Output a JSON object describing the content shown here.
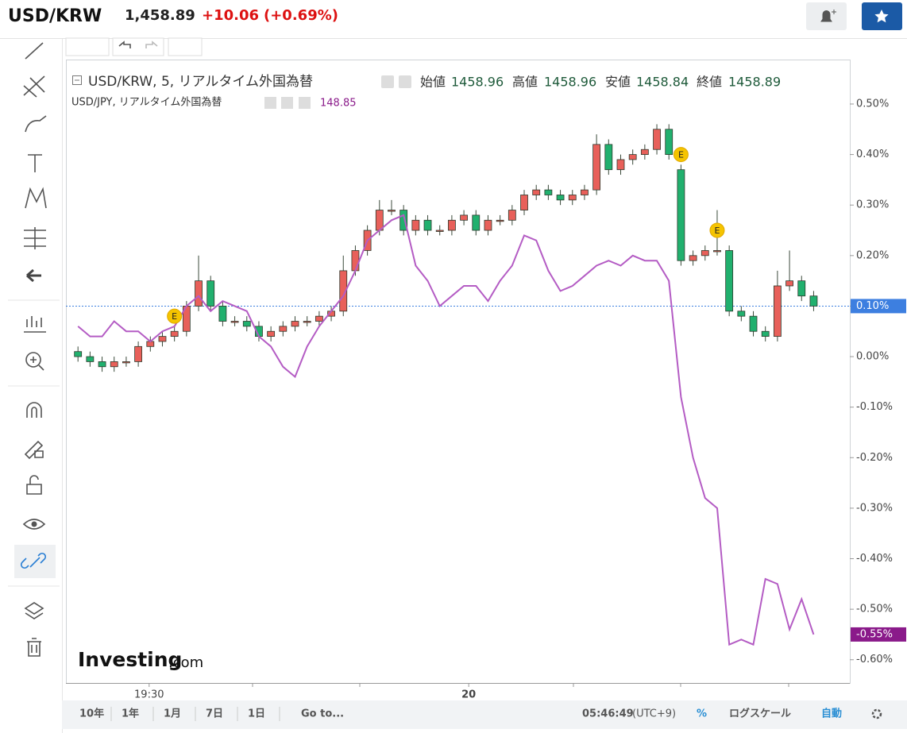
{
  "header": {
    "symbol": "USD/KRW",
    "price": "1,458.89",
    "change": "+10.06",
    "change_pct": "(+0.69%)"
  },
  "legend": {
    "open_label": "始値",
    "open": "1458.96",
    "high_label": "高値",
    "high": "1458.96",
    "low_label": "安値",
    "low": "1458.84",
    "close_label": "終値",
    "close": "1458.89",
    "compare_value": "148.85"
  },
  "chart_data": {
    "type": "candlestick",
    "xlim": [
      -1,
      64
    ],
    "ylim": [
      -0.646,
      0.588
    ],
    "xticks": [
      {
        "value": 5.9,
        "label": "19:30"
      },
      {
        "value": 32.4,
        "label": "20"
      }
    ],
    "yticks": [
      {
        "value": 0.5,
        "label": "0.50%"
      },
      {
        "value": 0.4,
        "label": "0.40%"
      },
      {
        "value": 0.3,
        "label": "0.30%"
      },
      {
        "value": 0.2,
        "label": "0.20%"
      },
      {
        "value": 0.1,
        "label": "0.10%"
      },
      {
        "value": 0,
        "label": "0.00%"
      },
      {
        "value": -0.1,
        "label": "-0.10%"
      },
      {
        "value": -0.2,
        "label": "-0.20%"
      },
      {
        "value": -0.3,
        "label": "-0.30%"
      },
      {
        "value": -0.4,
        "label": "-0.40%"
      },
      {
        "value": -0.5,
        "label": "-0.50%"
      },
      {
        "value": -0.6,
        "label": "-0.60%"
      }
    ],
    "series": [
      {
        "name": "USD/KRW, 5, リアルタイム外国為替",
        "type": "candlestick",
        "up_color": "#e8605a",
        "down_color": "#21b06e",
        "last_label": "0.10%",
        "last_label_color": "#3d7fe0",
        "open": [
          0.01,
          0.0,
          -0.01,
          -0.02,
          -0.01,
          -0.01,
          0.02,
          0.03,
          0.04,
          0.05,
          0.1,
          0.15,
          0.1,
          0.07,
          0.07,
          0.06,
          0.04,
          0.05,
          0.06,
          0.07,
          0.07,
          0.08,
          0.09,
          0.17,
          0.21,
          0.25,
          0.29,
          0.29,
          0.25,
          0.27,
          0.25,
          0.25,
          0.27,
          0.28,
          0.25,
          0.27,
          0.27,
          0.29,
          0.32,
          0.33,
          0.32,
          0.31,
          0.32,
          0.33,
          0.42,
          0.37,
          0.39,
          0.4,
          0.41,
          0.45,
          0.37,
          0.19,
          0.2,
          0.21,
          0.21,
          0.09,
          0.08,
          0.05,
          0.04,
          0.14,
          0.15,
          0.12
        ],
        "high": [
          0.02,
          0.01,
          0.0,
          0.0,
          0.0,
          0.03,
          0.04,
          0.05,
          0.06,
          0.11,
          0.2,
          0.16,
          0.11,
          0.08,
          0.08,
          0.07,
          0.06,
          0.07,
          0.08,
          0.08,
          0.09,
          0.1,
          0.2,
          0.22,
          0.26,
          0.31,
          0.31,
          0.3,
          0.28,
          0.28,
          0.26,
          0.28,
          0.29,
          0.29,
          0.28,
          0.28,
          0.3,
          0.33,
          0.34,
          0.34,
          0.33,
          0.33,
          0.34,
          0.44,
          0.43,
          0.4,
          0.41,
          0.42,
          0.46,
          0.46,
          0.38,
          0.21,
          0.22,
          0.29,
          0.22,
          0.1,
          0.09,
          0.06,
          0.17,
          0.21,
          0.16,
          0.13
        ],
        "low": [
          -0.01,
          -0.02,
          -0.03,
          -0.03,
          -0.02,
          -0.02,
          0.01,
          0.02,
          0.03,
          0.04,
          0.09,
          0.09,
          0.06,
          0.06,
          0.05,
          0.03,
          0.03,
          0.04,
          0.05,
          0.06,
          0.06,
          0.07,
          0.08,
          0.16,
          0.2,
          0.24,
          0.28,
          0.24,
          0.24,
          0.24,
          0.24,
          0.24,
          0.26,
          0.24,
          0.24,
          0.26,
          0.26,
          0.28,
          0.31,
          0.31,
          0.3,
          0.3,
          0.31,
          0.32,
          0.36,
          0.36,
          0.38,
          0.39,
          0.4,
          0.39,
          0.18,
          0.18,
          0.19,
          0.2,
          0.08,
          0.07,
          0.04,
          0.03,
          0.03,
          0.13,
          0.11,
          0.09
        ],
        "close": [
          0.0,
          -0.01,
          -0.02,
          -0.01,
          -0.01,
          0.02,
          0.03,
          0.04,
          0.05,
          0.1,
          0.15,
          0.1,
          0.07,
          0.07,
          0.06,
          0.04,
          0.05,
          0.06,
          0.07,
          0.07,
          0.08,
          0.09,
          0.17,
          0.21,
          0.25,
          0.29,
          0.29,
          0.25,
          0.27,
          0.25,
          0.25,
          0.27,
          0.28,
          0.25,
          0.27,
          0.27,
          0.29,
          0.32,
          0.33,
          0.32,
          0.31,
          0.32,
          0.33,
          0.42,
          0.37,
          0.39,
          0.4,
          0.41,
          0.45,
          0.4,
          0.19,
          0.2,
          0.21,
          0.21,
          0.09,
          0.08,
          0.05,
          0.04,
          0.14,
          0.15,
          0.12,
          0.1
        ]
      },
      {
        "name": "USD/JPY, リアルタイム外国為替",
        "type": "line",
        "color": "#b45cc4",
        "last_label": "-0.55%",
        "last_label_color": "#8a1a8a",
        "values": [
          0.06,
          0.04,
          0.04,
          0.07,
          0.05,
          0.05,
          0.03,
          0.05,
          0.06,
          0.1,
          0.12,
          0.09,
          0.11,
          0.1,
          0.09,
          0.04,
          0.02,
          -0.02,
          -0.04,
          0.02,
          0.06,
          0.09,
          0.12,
          0.17,
          0.23,
          0.25,
          0.27,
          0.28,
          0.18,
          0.15,
          0.1,
          0.12,
          0.14,
          0.14,
          0.11,
          0.15,
          0.18,
          0.24,
          0.23,
          0.17,
          0.13,
          0.14,
          0.16,
          0.18,
          0.19,
          0.18,
          0.2,
          0.19,
          0.19,
          0.15,
          -0.08,
          -0.2,
          -0.28,
          -0.3,
          -0.57,
          -0.56,
          -0.57,
          -0.44,
          -0.45,
          -0.54,
          -0.48,
          -0.55
        ]
      }
    ],
    "events": [
      {
        "x": 8,
        "y": 0.08,
        "label": "E"
      },
      {
        "x": 50,
        "y": 0.4,
        "label": "E"
      },
      {
        "x": 53,
        "y": 0.25,
        "label": "E"
      }
    ]
  },
  "bottom_bar": {
    "ranges": [
      "10年",
      "1年",
      "1月",
      "7日",
      "1日"
    ],
    "goto": "Go to...",
    "time": "05:46:49",
    "tz": "(UTC+9)",
    "percent": "%",
    "log": "ログスケール",
    "auto": "自動"
  },
  "logo": {
    "brand": "Investing",
    "suffix": ".com"
  }
}
